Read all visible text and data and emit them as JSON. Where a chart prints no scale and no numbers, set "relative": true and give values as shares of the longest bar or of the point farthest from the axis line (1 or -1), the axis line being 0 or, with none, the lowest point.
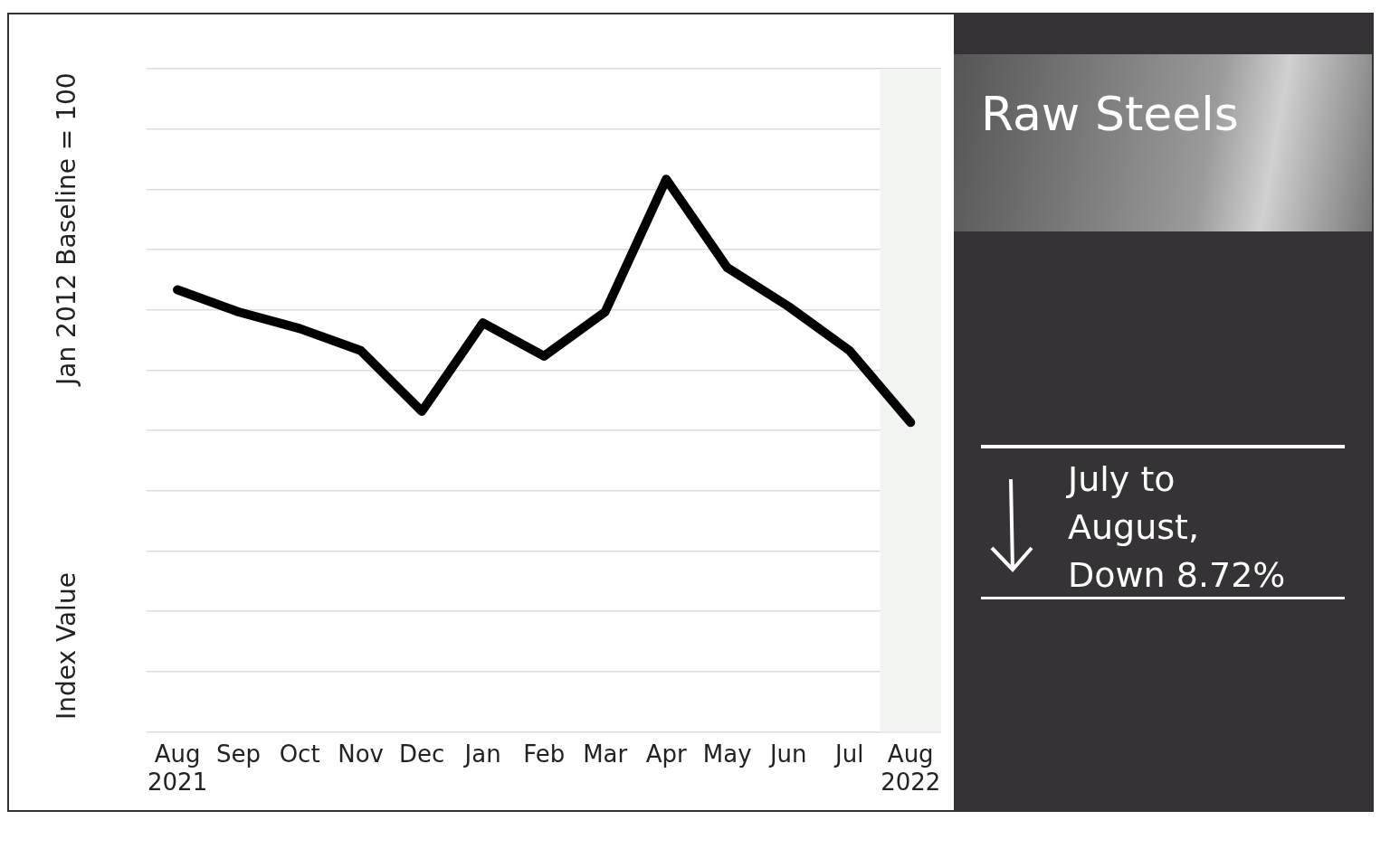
{
  "chart_data": {
    "type": "line",
    "title": "Raw Steels",
    "ylabel": "Index Value",
    "annotations": [
      "Jan 2012 Baseline = 100",
      "July to August, Down 8.72%"
    ],
    "categories": [
      "Aug 2021",
      "Sep",
      "Oct",
      "Nov",
      "Dec",
      "Jan",
      "Feb",
      "Mar",
      "Apr",
      "May",
      "Jun",
      "Jul",
      "Aug 2022"
    ],
    "relative": true,
    "series": [
      {
        "color": "#000000",
        "values": [
          0.8,
          0.76,
          0.73,
          0.69,
          0.58,
          0.74,
          0.68,
          0.76,
          1,
          0.84,
          0.77,
          0.69,
          0.56
        ]
      }
    ],
    "bands": [
      {
        "axis": "x",
        "from": "Jul",
        "to": "Aug 2022",
        "color": "#f2f4f2"
      }
    ],
    "grid": "y",
    "legend": false,
    "marker": "none",
    "line_style": "solid"
  }
}
